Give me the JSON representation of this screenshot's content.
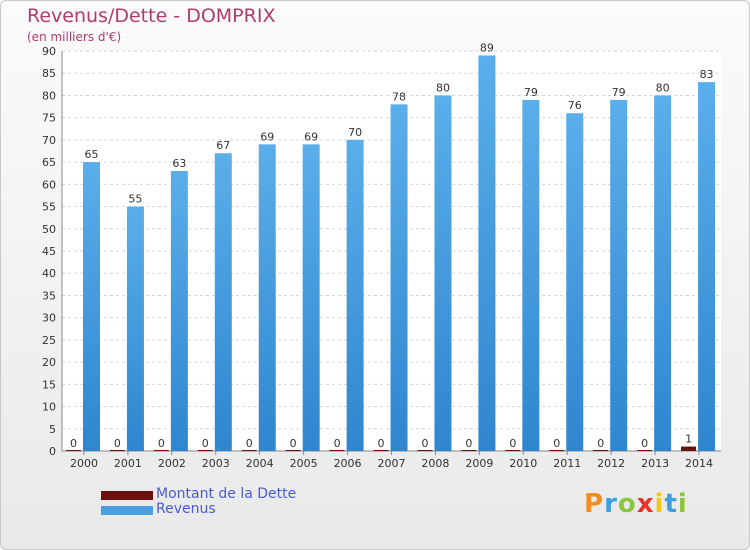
{
  "title": "Revenus/Dette - DOMPRIX",
  "subtitle": "(en milliers d'€)",
  "logo": {
    "text": "Proxiti",
    "letters": [
      {
        "ch": "P",
        "color": "#f28c1e"
      },
      {
        "ch": "r",
        "color": "#3aa0e0"
      },
      {
        "ch": "o",
        "color": "#8cc63f"
      },
      {
        "ch": "x",
        "color": "#e8322c"
      },
      {
        "ch": "i",
        "color": "#f5c518"
      },
      {
        "ch": "t",
        "color": "#3aa0e0"
      },
      {
        "ch": "i",
        "color": "#8cc63f"
      }
    ]
  },
  "legend": [
    {
      "label": "Montant de la Dette",
      "color": "#6b0f0f"
    },
    {
      "label": "Revenus",
      "color": "#4a9fe0"
    }
  ],
  "chart_data": {
    "type": "bar",
    "categories": [
      "2000",
      "2001",
      "2002",
      "2003",
      "2004",
      "2005",
      "2006",
      "2007",
      "2008",
      "2009",
      "2010",
      "2011",
      "2012",
      "2013",
      "2014"
    ],
    "series": [
      {
        "name": "Montant de la Dette",
        "color": "#6b0f0f",
        "values": [
          0,
          0,
          0,
          0,
          0,
          0,
          0,
          0,
          0,
          0,
          0,
          0,
          0,
          0,
          1
        ]
      },
      {
        "name": "Revenus",
        "color": "#4a9fe0",
        "values": [
          65,
          55,
          63,
          67,
          69,
          69,
          70,
          78,
          80,
          89,
          79,
          76,
          79,
          80,
          83
        ]
      }
    ],
    "ylim": [
      0,
      90
    ],
    "yticks": [
      0,
      5,
      10,
      15,
      20,
      25,
      30,
      35,
      40,
      45,
      50,
      55,
      60,
      65,
      70,
      75,
      80,
      85,
      90
    ],
    "grid": true,
    "legend_position": "bottom-left"
  }
}
